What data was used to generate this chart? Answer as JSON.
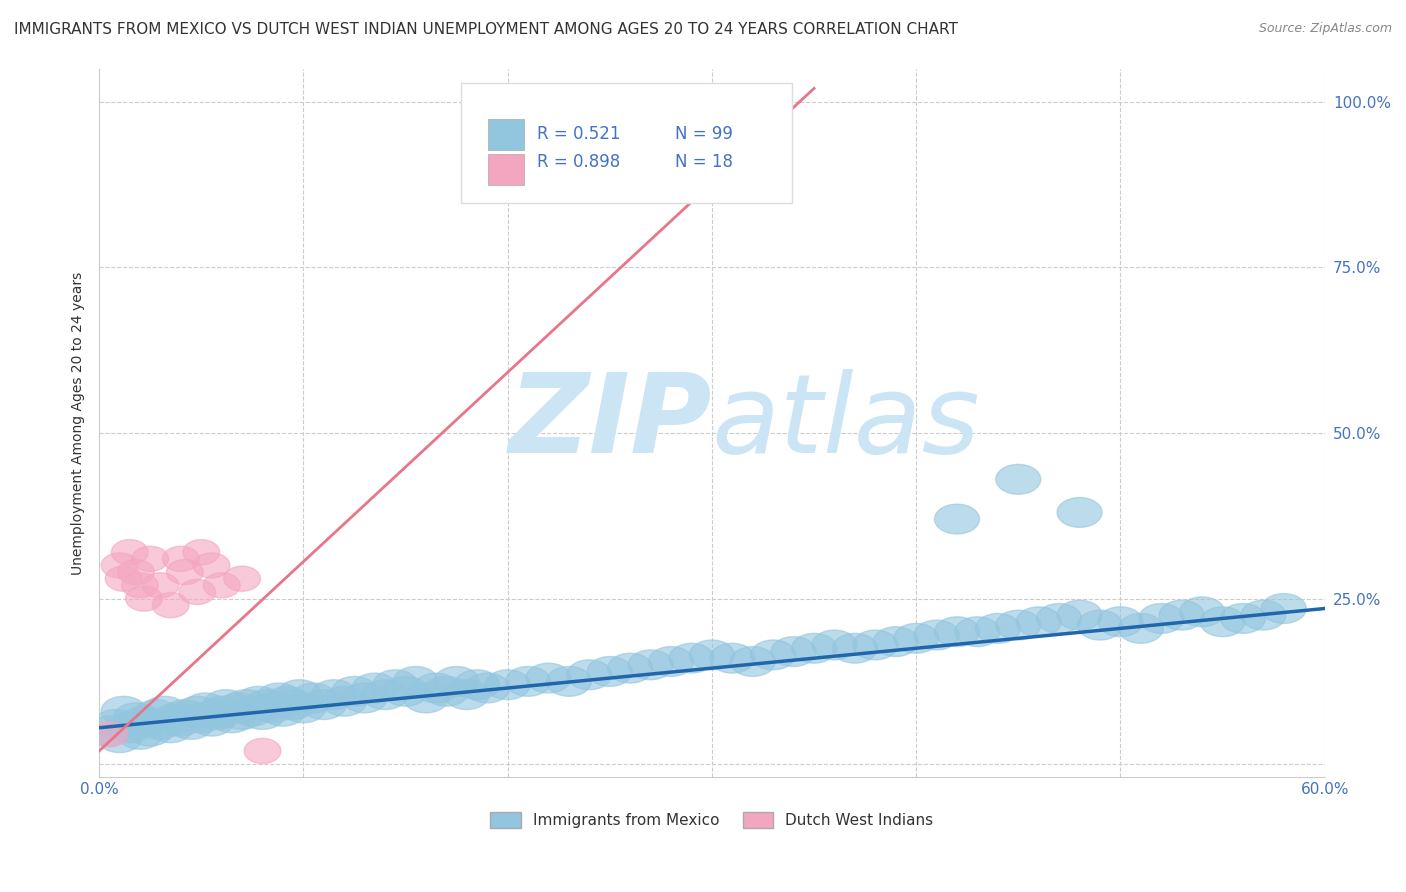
{
  "title": "IMMIGRANTS FROM MEXICO VS DUTCH WEST INDIAN UNEMPLOYMENT AMONG AGES 20 TO 24 YEARS CORRELATION CHART",
  "source": "Source: ZipAtlas.com",
  "ylabel": "Unemployment Among Ages 20 to 24 years",
  "xlim": [
    0.0,
    0.6
  ],
  "ylim": [
    -0.02,
    1.05
  ],
  "xticks": [
    0.0,
    0.1,
    0.2,
    0.3,
    0.4,
    0.5,
    0.6
  ],
  "yticks": [
    0.0,
    0.25,
    0.5,
    0.75,
    1.0
  ],
  "blue_color": "#92c5de",
  "pink_color": "#f4a6c0",
  "blue_line_color": "#2166ac",
  "pink_line_color": "#e8758a",
  "watermark_color": "#cce5f5",
  "legend_label_blue": "Immigrants from Mexico",
  "legend_label_pink": "Dutch West Indians",
  "blue_scatter_x": [
    0.005,
    0.008,
    0.01,
    0.012,
    0.015,
    0.018,
    0.02,
    0.022,
    0.025,
    0.028,
    0.03,
    0.032,
    0.035,
    0.038,
    0.04,
    0.042,
    0.045,
    0.048,
    0.05,
    0.052,
    0.055,
    0.058,
    0.06,
    0.062,
    0.065,
    0.068,
    0.07,
    0.072,
    0.075,
    0.078,
    0.08,
    0.082,
    0.085,
    0.088,
    0.09,
    0.092,
    0.095,
    0.098,
    0.1,
    0.105,
    0.11,
    0.115,
    0.12,
    0.125,
    0.13,
    0.135,
    0.14,
    0.145,
    0.15,
    0.155,
    0.16,
    0.165,
    0.17,
    0.175,
    0.18,
    0.185,
    0.19,
    0.2,
    0.21,
    0.22,
    0.23,
    0.24,
    0.25,
    0.26,
    0.27,
    0.28,
    0.29,
    0.3,
    0.31,
    0.32,
    0.33,
    0.34,
    0.35,
    0.36,
    0.37,
    0.38,
    0.39,
    0.4,
    0.41,
    0.42,
    0.43,
    0.44,
    0.45,
    0.46,
    0.47,
    0.48,
    0.49,
    0.5,
    0.51,
    0.52,
    0.53,
    0.54,
    0.55,
    0.56,
    0.57,
    0.58,
    0.42,
    0.45,
    0.48
  ],
  "blue_scatter_y": [
    0.05,
    0.06,
    0.04,
    0.08,
    0.055,
    0.07,
    0.045,
    0.065,
    0.05,
    0.075,
    0.06,
    0.08,
    0.055,
    0.07,
    0.065,
    0.075,
    0.06,
    0.08,
    0.07,
    0.085,
    0.065,
    0.075,
    0.08,
    0.09,
    0.07,
    0.085,
    0.075,
    0.09,
    0.08,
    0.095,
    0.075,
    0.09,
    0.085,
    0.1,
    0.08,
    0.095,
    0.09,
    0.105,
    0.085,
    0.1,
    0.09,
    0.105,
    0.095,
    0.11,
    0.1,
    0.115,
    0.105,
    0.12,
    0.11,
    0.125,
    0.1,
    0.115,
    0.11,
    0.125,
    0.105,
    0.12,
    0.115,
    0.12,
    0.125,
    0.13,
    0.125,
    0.135,
    0.14,
    0.145,
    0.15,
    0.155,
    0.16,
    0.165,
    0.16,
    0.155,
    0.165,
    0.17,
    0.175,
    0.18,
    0.175,
    0.18,
    0.185,
    0.19,
    0.195,
    0.2,
    0.2,
    0.205,
    0.21,
    0.215,
    0.22,
    0.225,
    0.21,
    0.215,
    0.205,
    0.22,
    0.225,
    0.23,
    0.215,
    0.22,
    0.225,
    0.235,
    0.37,
    0.43,
    0.38
  ],
  "pink_scatter_x": [
    0.005,
    0.01,
    0.012,
    0.015,
    0.018,
    0.02,
    0.022,
    0.025,
    0.03,
    0.035,
    0.04,
    0.042,
    0.048,
    0.05,
    0.055,
    0.06,
    0.07,
    0.08
  ],
  "pink_scatter_y": [
    0.045,
    0.3,
    0.28,
    0.32,
    0.29,
    0.27,
    0.25,
    0.31,
    0.27,
    0.24,
    0.31,
    0.29,
    0.26,
    0.32,
    0.3,
    0.27,
    0.28,
    0.02
  ],
  "blue_trendline_x": [
    0.0,
    0.6
  ],
  "blue_trendline_y": [
    0.055,
    0.235
  ],
  "pink_trendline_x": [
    0.0,
    0.35
  ],
  "pink_trendline_y": [
    0.02,
    1.02
  ],
  "background_color": "#ffffff",
  "grid_color": "#cccccc",
  "title_fontsize": 11,
  "axis_label_fontsize": 10
}
